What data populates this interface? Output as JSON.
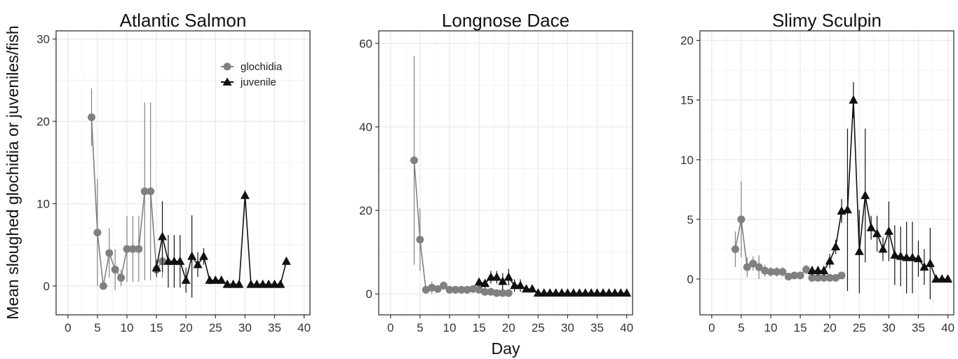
{
  "figure": {
    "ylabel": "Mean sloughed glochidia or juveniles/fish",
    "xlabel": "Day",
    "legend": {
      "position": "top-right",
      "items": [
        {
          "label": "glochidia",
          "marker": "circle",
          "color": "#808080"
        },
        {
          "label": "juvenile",
          "marker": "triangle",
          "color": "#111111"
        }
      ]
    },
    "colors": {
      "glochidia": "#808080",
      "juvenile": "#111111",
      "panel_bg": "#ffffff",
      "grid": "#ececec",
      "border": "#333333"
    }
  },
  "chart_data": [
    {
      "type": "line",
      "title": "Atlantic Salmon",
      "xlim": [
        -2,
        41
      ],
      "ylim": [
        -3.5,
        31
      ],
      "xticks": [
        0,
        5,
        10,
        15,
        20,
        25,
        30,
        35,
        40
      ],
      "yticks": [
        0,
        10,
        20,
        30
      ],
      "series": [
        {
          "name": "glochidia",
          "marker": "circle",
          "x": [
            4,
            5,
            6,
            7,
            8,
            9,
            10,
            11,
            12,
            13,
            14,
            15,
            16
          ],
          "y": [
            20.5,
            6.5,
            0,
            4,
            2,
            1,
            4.5,
            4.5,
            4.5,
            11.5,
            11.5,
            2,
            3
          ],
          "err": [
            3.5,
            6.5,
            0.3,
            3,
            2.5,
            1,
            4,
            4,
            4,
            10.8,
            10.8,
            1,
            2
          ]
        },
        {
          "name": "juvenile",
          "marker": "triangle",
          "x": [
            15,
            16,
            17,
            18,
            19,
            20,
            21,
            22,
            23,
            24,
            25,
            26,
            27,
            28,
            29,
            30,
            31,
            32,
            33,
            34,
            35,
            36,
            37
          ],
          "y": [
            2.2,
            6,
            3,
            3,
            3,
            0.7,
            3.6,
            2.6,
            3.6,
            0.7,
            0.7,
            0.7,
            0.2,
            0.2,
            0.2,
            11,
            0.2,
            0.2,
            0.2,
            0.2,
            0.2,
            0.2,
            3
          ],
          "err": [
            1,
            4.3,
            3.2,
            3.2,
            3.2,
            1.5,
            5,
            1.5,
            1,
            0.5,
            0.3,
            0.3,
            0.2,
            0.2,
            0.2,
            0.6,
            0.2,
            0.2,
            0.2,
            0.2,
            0.2,
            0.2,
            0.3
          ]
        }
      ]
    },
    {
      "type": "line",
      "title": "Longnose Dace",
      "xlim": [
        -2,
        41
      ],
      "ylim": [
        -5,
        63
      ],
      "xticks": [
        0,
        5,
        10,
        15,
        20,
        25,
        30,
        35,
        40
      ],
      "yticks": [
        0,
        20,
        40,
        60
      ],
      "series": [
        {
          "name": "glochidia",
          "marker": "circle",
          "x": [
            4,
            5,
            6,
            7,
            8,
            9,
            10,
            11,
            12,
            13,
            14,
            15,
            16,
            17,
            18,
            19,
            20
          ],
          "y": [
            32,
            13,
            1,
            1.5,
            1.2,
            2,
            1,
            1,
            1,
            1,
            1.2,
            1,
            0.5,
            0.5,
            0.2,
            0.2,
            0.2
          ],
          "err": [
            25,
            7.5,
            0.5,
            1.5,
            0.8,
            1,
            0.3,
            0.3,
            0.3,
            0.3,
            0.3,
            0.3,
            0.3,
            0.3,
            0.2,
            0.2,
            0.2
          ]
        },
        {
          "name": "juvenile",
          "marker": "triangle",
          "x": [
            15,
            16,
            17,
            18,
            19,
            20,
            21,
            22,
            23,
            24,
            25,
            26,
            27,
            28,
            29,
            30,
            31,
            32,
            33,
            34,
            35,
            36,
            37,
            38,
            39,
            40
          ],
          "y": [
            2.8,
            2.5,
            4,
            4,
            3,
            4,
            2,
            2,
            1.2,
            1.2,
            0.2,
            0.2,
            0.2,
            0.2,
            0.2,
            0.2,
            0.2,
            0.2,
            0.2,
            0.2,
            0.2,
            0.2,
            0.2,
            0.2,
            0.2,
            0.2
          ],
          "err": [
            1,
            1,
            1.5,
            1.5,
            2,
            2,
            1.5,
            1.5,
            0.5,
            0.5,
            0.1,
            0.1,
            0.1,
            0.1,
            0.1,
            0.1,
            0.1,
            0.1,
            0.1,
            0.1,
            0.1,
            0.1,
            0.1,
            0.1,
            0.1,
            0.1
          ]
        }
      ]
    },
    {
      "type": "line",
      "title": "Slimy Sculpin",
      "xlim": [
        -2,
        41
      ],
      "ylim": [
        -3,
        20.8
      ],
      "xticks": [
        0,
        5,
        10,
        15,
        20,
        25,
        30,
        35,
        40
      ],
      "yticks": [
        0,
        5,
        10,
        15,
        20
      ],
      "series": [
        {
          "name": "glochidia",
          "marker": "circle",
          "x": [
            4,
            5,
            6,
            7,
            8,
            9,
            10,
            11,
            12,
            13,
            14,
            15,
            16,
            17,
            18,
            19,
            20,
            21,
            22
          ],
          "y": [
            2.5,
            5,
            1,
            1.3,
            1,
            0.7,
            0.6,
            0.6,
            0.6,
            0.2,
            0.3,
            0.3,
            0.8,
            0.1,
            0.1,
            0.1,
            0.1,
            0.1,
            0.3
          ],
          "err": [
            1.5,
            3.2,
            0.8,
            0.6,
            1,
            0.5,
            0.4,
            0.4,
            0.4,
            0.2,
            0.2,
            0.2,
            0.4,
            0.1,
            0.1,
            0.1,
            0.1,
            0.1,
            0.2
          ]
        },
        {
          "name": "juvenile",
          "marker": "triangle",
          "x": [
            17,
            18,
            19,
            20,
            21,
            22,
            23,
            24,
            25,
            26,
            27,
            28,
            29,
            30,
            31,
            32,
            33,
            34,
            35,
            36,
            37,
            38,
            39,
            40
          ],
          "y": [
            0.7,
            0.7,
            0.7,
            1.5,
            2.7,
            5.7,
            5.8,
            15,
            2.3,
            7,
            4.3,
            3.8,
            2.5,
            4,
            2,
            1.9,
            1.8,
            1.8,
            1.7,
            1,
            1.3,
            0,
            0,
            0
          ],
          "err": [
            0.4,
            0.4,
            0.4,
            0.6,
            0.6,
            1,
            6.8,
            1.5,
            3.5,
            5.6,
            1,
            1.5,
            1,
            2.5,
            2.5,
            2.5,
            3,
            3,
            1.5,
            1.5,
            3,
            0,
            0,
            0
          ]
        }
      ]
    }
  ]
}
